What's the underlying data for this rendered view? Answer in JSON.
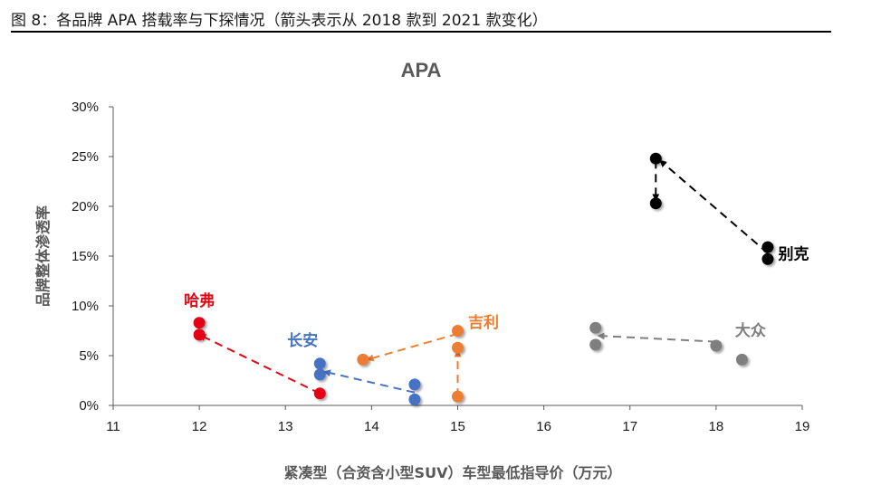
{
  "figure": {
    "caption": "图 8：各品牌 APA 搭载率与下探情况（箭头表示从 2018 款到 2021 款变化）"
  },
  "chart_data": {
    "type": "scatter",
    "title": "APA",
    "xlabel": "紧凑型（合资含小型SUV）车型最低指导价（万元）",
    "ylabel": "品牌整体渗透率",
    "xlim": [
      11,
      19
    ],
    "ylim": [
      0,
      0.3
    ],
    "x_ticks": [
      {
        "value": 11,
        "label": "11"
      },
      {
        "value": 12,
        "label": "12"
      },
      {
        "value": 13,
        "label": "13"
      },
      {
        "value": 14,
        "label": "14"
      },
      {
        "value": 15,
        "label": "15"
      },
      {
        "value": 16,
        "label": "16"
      },
      {
        "value": 17,
        "label": "17"
      },
      {
        "value": 18,
        "label": "18"
      },
      {
        "value": 19,
        "label": "19"
      }
    ],
    "y_ticks": [
      {
        "value": 0,
        "label": "0%"
      },
      {
        "value": 0.05,
        "label": "5%"
      },
      {
        "value": 0.1,
        "label": "10%"
      },
      {
        "value": 0.15,
        "label": "15%"
      },
      {
        "value": 0.2,
        "label": "20%"
      },
      {
        "value": 0.25,
        "label": "25%"
      },
      {
        "value": 0.3,
        "label": "30%"
      }
    ],
    "grid": false,
    "series": [
      {
        "name": "哈弗",
        "color": "#e30613",
        "label": {
          "x": 12.0,
          "y": 0.1
        },
        "points": [
          [
            12.0,
            0.083
          ],
          [
            12.0,
            0.071
          ],
          [
            13.4,
            0.012
          ]
        ],
        "arrows": [
          [
            [
              13.4,
              0.012
            ],
            [
              12.0,
              0.071
            ]
          ]
        ]
      },
      {
        "name": "长安",
        "color": "#4472c4",
        "label": {
          "x": 13.2,
          "y": 0.06
        },
        "points": [
          [
            13.4,
            0.042
          ],
          [
            13.4,
            0.031
          ],
          [
            14.5,
            0.021
          ],
          [
            14.5,
            0.006
          ]
        ],
        "arrows": [
          [
            [
              14.5,
              0.013
            ],
            [
              13.45,
              0.034
            ]
          ]
        ]
      },
      {
        "name": "吉利",
        "color": "#ed7d31",
        "label": {
          "x": 15.3,
          "y": 0.078
        },
        "points": [
          [
            15.0,
            0.075
          ],
          [
            15.0,
            0.058
          ],
          [
            13.9,
            0.046
          ],
          [
            15.0,
            0.009
          ]
        ],
        "arrows": [
          [
            [
              15.0,
              0.072
            ],
            [
              13.95,
              0.046
            ]
          ],
          [
            [
              15.0,
              0.009
            ],
            [
              15.0,
              0.055
            ]
          ]
        ]
      },
      {
        "name": "大众",
        "color": "#7f7f7f",
        "label": {
          "x": 18.4,
          "y": 0.07
        },
        "points": [
          [
            16.6,
            0.078
          ],
          [
            16.6,
            0.061
          ],
          [
            18.0,
            0.06
          ],
          [
            18.3,
            0.046
          ]
        ],
        "arrows": [
          [
            [
              18.0,
              0.064
            ],
            [
              16.63,
              0.07
            ]
          ]
        ]
      },
      {
        "name": "别克",
        "color": "#000000",
        "label": {
          "x": 18.9,
          "y": 0.147
        },
        "points": [
          [
            17.3,
            0.248
          ],
          [
            17.3,
            0.203
          ],
          [
            18.6,
            0.159
          ],
          [
            18.6,
            0.147
          ]
        ],
        "arrows": [
          [
            [
              18.6,
              0.153
            ],
            [
              17.35,
              0.246
            ]
          ],
          [
            [
              17.3,
              0.246
            ],
            [
              17.3,
              0.206
            ]
          ]
        ]
      }
    ]
  }
}
